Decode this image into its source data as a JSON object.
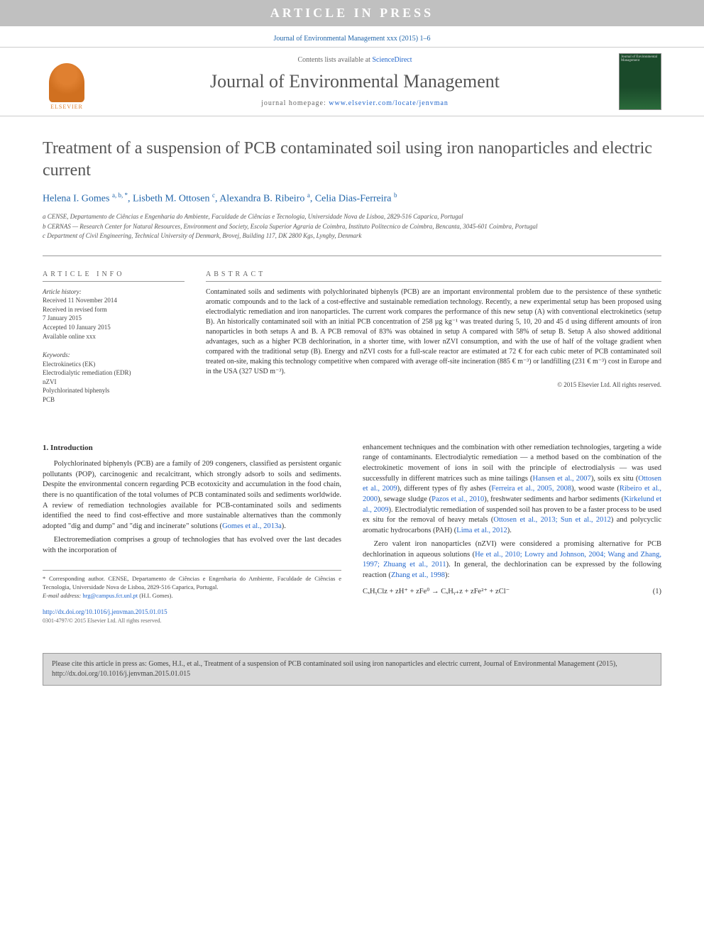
{
  "banner": "ARTICLE IN PRESS",
  "header_ref": "Journal of Environmental Management xxx (2015) 1–6",
  "masthead": {
    "elsevier": "ELSEVIER",
    "contents_prefix": "Contents lists available at ",
    "contents_link": "ScienceDirect",
    "journal": "Journal of Environmental Management",
    "homepage_prefix": "journal homepage: ",
    "homepage_link": "www.elsevier.com/locate/jenvman",
    "cover_text": "Journal of Environmental Management"
  },
  "title": "Treatment of a suspension of PCB contaminated soil using iron nanoparticles and electric current",
  "authors_html": "Helena I. Gomes <sup>a, b, *</sup>, Lisbeth M. Ottosen <sup>c</sup>, Alexandra B. Ribeiro <sup>a</sup>, Celia Dias-Ferreira <sup>b</sup>",
  "affiliations": {
    "a": "a CENSE, Departamento de Ciências e Engenharia do Ambiente, Faculdade de Ciências e Tecnologia, Universidade Nova de Lisboa, 2829-516 Caparica, Portugal",
    "b": "b CERNAS — Research Center for Natural Resources, Environment and Society, Escola Superior Agraria de Coimbra, Instituto Politecnico de Coimbra, Bencanta, 3045-601 Coimbra, Portugal",
    "c": "c Department of Civil Engineering, Technical University of Denmark, Brovej, Building 117, DK 2800 Kgs, Lyngby, Denmark"
  },
  "info": {
    "label": "ARTICLE INFO",
    "history_label": "Article history:",
    "history": "Received 11 November 2014\nReceived in revised form\n7 January 2015\nAccepted 10 January 2015\nAvailable online xxx",
    "keywords_label": "Keywords:",
    "keywords": "Electrokinetics (EK)\nElectrodialytic remediation (EDR)\nnZVI\nPolychlorinated biphenyls\nPCB"
  },
  "abstract": {
    "label": "ABSTRACT",
    "text": "Contaminated soils and sediments with polychlorinated biphenyls (PCB) are an important environmental problem due to the persistence of these synthetic aromatic compounds and to the lack of a cost-effective and sustainable remediation technology. Recently, a new experimental setup has been proposed using electrodialytic remediation and iron nanoparticles. The current work compares the performance of this new setup (A) with conventional electrokinetics (setup B). An historically contaminated soil with an initial PCB concentration of 258 µg kg⁻¹ was treated during 5, 10, 20 and 45 d using different amounts of iron nanoparticles in both setups A and B. A PCB removal of 83% was obtained in setup A compared with 58% of setup B. Setup A also showed additional advantages, such as a higher PCB dechlorination, in a shorter time, with lower nZVI consumption, and with the use of half of the voltage gradient when compared with the traditional setup (B). Energy and nZVI costs for a full-scale reactor are estimated at 72 € for each cubic meter of PCB contaminated soil treated on-site, making this technology competitive when compared with average off-site incineration (885 € m⁻³) or landfilling (231 € m⁻³) cost in Europe and in the USA (327 USD m⁻³).",
    "copyright": "© 2015 Elsevier Ltd. All rights reserved."
  },
  "intro": {
    "heading": "1. Introduction",
    "p1": "Polychlorinated biphenyls (PCB) are a family of 209 congeners, classified as persistent organic pollutants (POP), carcinogenic and recalcitrant, which strongly adsorb to soils and sediments. Despite the environmental concern regarding PCB ecotoxicity and accumulation in the food chain, there is no quantification of the total volumes of PCB contaminated soils and sediments worldwide. A review of remediation technologies available for PCB-contaminated soils and sediments identified the need to find cost-effective and more sustainable alternatives than the commonly adopted \"dig and dump\" and \"dig and incinerate\" solutions (",
    "p1_link": "Gomes et al., 2013a",
    "p1_end": ").",
    "p2": "Electroremediation comprises a group of technologies that has evolved over the last decades with the incorporation of",
    "col2_p1": "enhancement techniques and the combination with other remediation technologies, targeting a wide range of contaminants. Electrodialytic remediation — a method based on the combination of the electrokinetic movement of ions in soil with the principle of electrodialysis — was used successfully in different matrices such as mine tailings (",
    "links": {
      "hansen": "Hansen et al., 2007",
      "ottosen09": "Ottosen et al., 2009",
      "ferreira": "Ferreira et al., 2005, 2008",
      "ribeiro": "Ribeiro et al., 2000",
      "pazos": "Pazos et al., 2010",
      "kirkelund": "Kirkelund et al., 2009",
      "ottosen13": "Ottosen et al., 2013; Sun et al., 2012",
      "lima": "Lima et al., 2012",
      "he": "He et al., 2010; Lowry and Johnson, 2004; Wang and Zhang, 1997; Zhuang et al., 2011",
      "zhang": "Zhang et al., 1998"
    },
    "col2_mid1": "), soils ex situ (",
    "col2_mid2": "), different types of fly ashes (",
    "col2_mid3": "), wood waste (",
    "col2_mid4": "), sewage sludge (",
    "col2_mid5": "), freshwater sediments and harbor sediments (",
    "col2_mid6": "). Electrodialytic remediation of suspended soil has proven to be a faster process to be used ex situ for the removal of heavy metals (",
    "col2_mid7": ") and polycyclic aromatic hydrocarbons (PAH) (",
    "col2_mid8": ").",
    "col2_p2a": "Zero valent iron nanoparticles (nZVI) were considered a promising alternative for PCB dechlorination in aqueous solutions (",
    "col2_p2b": "). In general, the dechlorination can be expressed by the following reaction (",
    "col2_p2c": "):",
    "equation": "CₓHᵧClz + zH⁺ + zFe⁰ → CₓHᵧ₊z + zFe²⁺ + zCl⁻",
    "eq_num": "(1)"
  },
  "corr": {
    "star": "* Corresponding author. CENSE, Departamento de Ciências e Engenharia do Ambiente, Faculdade de Ciências e Tecnologia, Universidade Nova de Lisboa, 2829-516 Caparica, Portugal.",
    "email_label": "E-mail address: ",
    "email": "hrg@campus.fct.unl.pt",
    "email_suffix": " (H.I. Gomes)."
  },
  "doi": "http://dx.doi.org/10.1016/j.jenvman.2015.01.015",
  "issn_copyright": "0301-4797/© 2015 Elsevier Ltd. All rights reserved.",
  "citation": "Please cite this article in press as: Gomes, H.I., et al., Treatment of a suspension of PCB contaminated soil using iron nanoparticles and electric current, Journal of Environmental Management (2015), http://dx.doi.org/10.1016/j.jenvman.2015.01.015"
}
